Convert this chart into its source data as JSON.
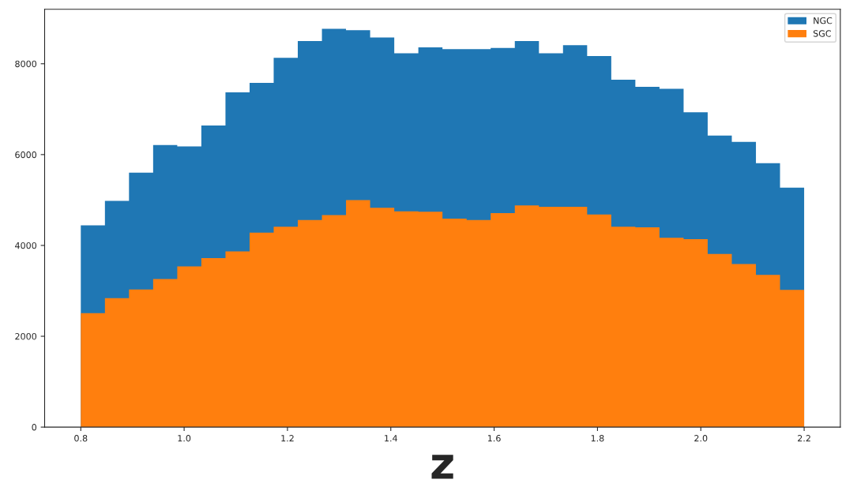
{
  "chart_data": {
    "type": "histogram",
    "xlabel": "z",
    "bins": [
      0.8,
      0.8467,
      0.8933,
      0.94,
      0.9867,
      1.0333,
      1.08,
      1.1267,
      1.1733,
      1.22,
      1.2667,
      1.3133,
      1.36,
      1.4067,
      1.4533,
      1.5,
      1.5467,
      1.5933,
      1.64,
      1.6867,
      1.7333,
      1.78,
      1.8267,
      1.8733,
      1.92,
      1.9667,
      2.0133,
      2.06,
      2.1067,
      2.1533,
      2.2
    ],
    "series": [
      {
        "name": "NGC",
        "color": "#1f77b4",
        "values": [
          4440,
          4980,
          5600,
          6210,
          6180,
          6640,
          7370,
          7580,
          8130,
          8500,
          8770,
          8740,
          8580,
          8230,
          8360,
          8320,
          8320,
          8350,
          8500,
          8230,
          8410,
          8170,
          7650,
          7490,
          7450,
          6930,
          6420,
          6280,
          5810,
          5270
        ]
      },
      {
        "name": "SGC",
        "color": "#ff7f0e",
        "values": [
          2510,
          2840,
          3030,
          3260,
          3540,
          3720,
          3870,
          4280,
          4410,
          4560,
          4670,
          5000,
          4830,
          4750,
          4740,
          4590,
          4560,
          4710,
          4880,
          4850,
          4850,
          4680,
          4410,
          4400,
          4170,
          4140,
          3810,
          3590,
          3350,
          3020
        ]
      }
    ],
    "xlim": [
      0.73,
      2.27
    ],
    "ylim": [
      0,
      9200
    ],
    "xticks": [
      0.8,
      {
        "value": 1,
        "label": "1.0"
      },
      1.2,
      1.4,
      1.6,
      1.8,
      {
        "value": 2,
        "label": "2.0"
      },
      2.2
    ],
    "yticks": [
      0,
      2000,
      4000,
      6000,
      8000
    ],
    "legend": "top right",
    "grid": false
  }
}
